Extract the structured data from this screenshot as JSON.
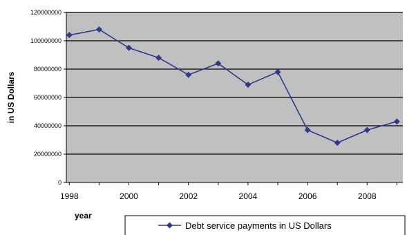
{
  "chart_data": {
    "type": "line",
    "x": [
      1998,
      1999,
      2000,
      2001,
      2002,
      2003,
      2004,
      2005,
      2006,
      2007,
      2008,
      2009
    ],
    "x_tick_labels": [
      "1998",
      "2000",
      "2002",
      "2004",
      "2006",
      "2008"
    ],
    "y_tick_labels": [
      "0",
      "20000000",
      "40000000",
      "60000000",
      "80000000",
      "100000000",
      "120000000"
    ],
    "series": [
      {
        "name": "Debt service payments in US Dollars",
        "values": [
          104000000,
          108000000,
          95000000,
          88000000,
          76000000,
          84000000,
          69000000,
          78000000,
          37000000,
          28000000,
          37000000,
          43000000
        ],
        "color": "#2b3990"
      }
    ],
    "xlabel": "year",
    "ylabel": "in US Dollars",
    "ylim": [
      0,
      120000000
    ],
    "xlim": [
      1997.9,
      2009.2
    ],
    "grid": "horizontal",
    "plot_background": "#c0c0c0",
    "legend_position": "bottom-right"
  }
}
